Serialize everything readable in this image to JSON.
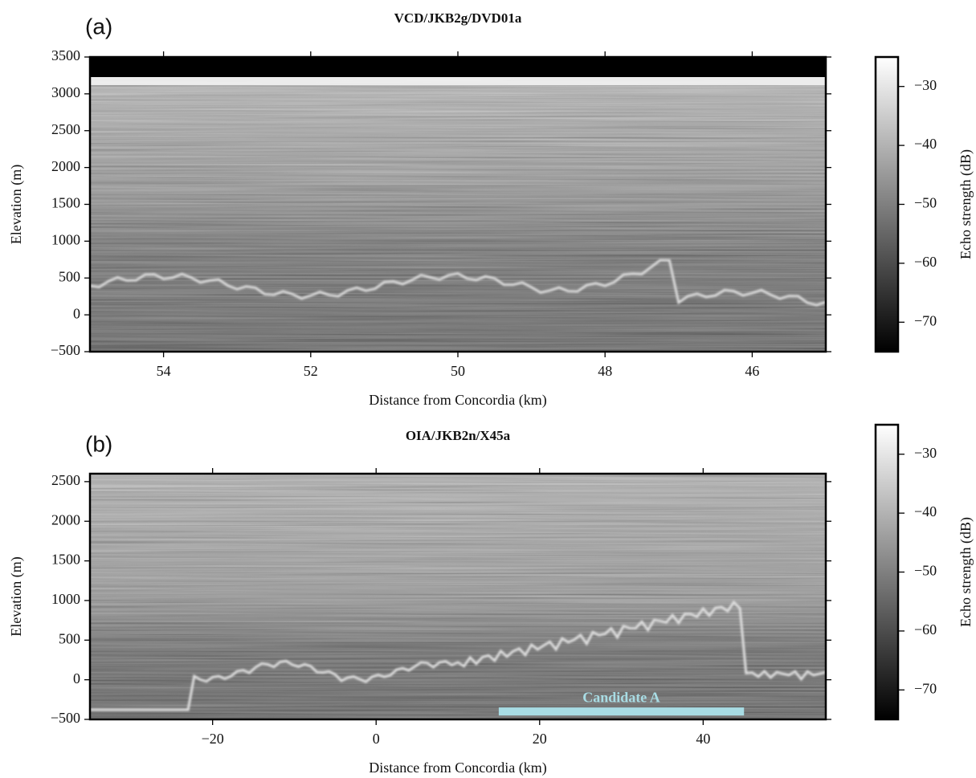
{
  "chart_data": [
    {
      "type": "radargram",
      "panel_label": "(a)",
      "title": "VCD/JKB2g/DVD01a",
      "xlabel": "Distance from Concordia (km)",
      "ylabel": "Elevation (m)",
      "xlim": [
        55,
        45
      ],
      "xticks": [
        54,
        52,
        50,
        48,
        46
      ],
      "ylim": [
        -500,
        3500
      ],
      "yticks": [
        {
          "value": -500,
          "label": "−500"
        },
        0,
        500,
        1000,
        1500,
        2000,
        2500,
        3000,
        3500
      ],
      "colorbar": {
        "label": "Echo strength (dB)",
        "clim": [
          -75,
          -25
        ],
        "ticks": [
          {
            "value": -30,
            "label": "−30"
          },
          {
            "value": -40,
            "label": "−40"
          },
          {
            "value": -50,
            "label": "−50"
          },
          {
            "value": -60,
            "label": "−60"
          },
          {
            "value": -70,
            "label": "−70"
          }
        ]
      }
    },
    {
      "type": "radargram",
      "panel_label": "(b)",
      "title": "OIA/JKB2n/X45a",
      "xlabel": "Distance from Concordia (km)",
      "ylabel": "Elevation (m)",
      "xlim": [
        -35,
        55
      ],
      "xticks": [
        {
          "value": -20,
          "label": "−20"
        },
        0,
        20,
        40
      ],
      "ylim": [
        -500,
        2600
      ],
      "yticks": [
        {
          "value": -500,
          "label": "−500"
        },
        0,
        500,
        1000,
        1500,
        2000,
        2500
      ],
      "annotation": {
        "text": "Candidate A",
        "x_start": 15,
        "x_end": 45,
        "y": -400,
        "color": "#a8dce4"
      },
      "colorbar": {
        "label": "Echo strength (dB)",
        "clim": [
          -75,
          -25
        ],
        "ticks": [
          {
            "value": -30,
            "label": "−30"
          },
          {
            "value": -40,
            "label": "−40"
          },
          {
            "value": -50,
            "label": "−50"
          },
          {
            "value": -60,
            "label": "−60"
          },
          {
            "value": -70,
            "label": "−70"
          }
        ]
      }
    }
  ]
}
